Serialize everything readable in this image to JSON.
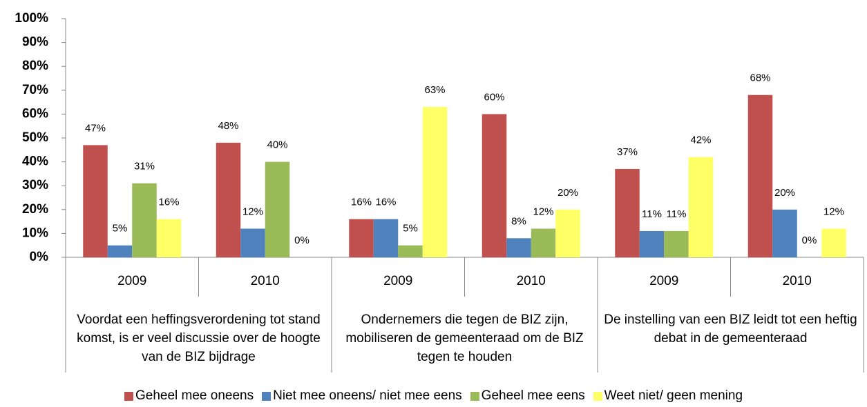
{
  "chart_data": {
    "type": "bar",
    "categories": [
      "2009",
      "2010",
      "2009",
      "2010",
      "2009",
      "2010"
    ],
    "category_groups": [
      "Voordat een heffingsverordening tot stand komst, is er veel discussie over de hoogte van de BIZ bijdrage",
      "Ondernemers die tegen de BIZ zijn, mobiliseren de gemeenteraad om de BIZ tegen te houden",
      "De instelling van een BIZ leidt tot een heftig debat in de gemeenteraad"
    ],
    "series": [
      {
        "name": "Geheel mee oneens",
        "color": "#c0504d",
        "values": [
          47,
          48,
          16,
          60,
          37,
          68
        ],
        "value_labels": [
          "47%",
          "48%",
          "16%",
          "60%",
          "37%",
          "68%"
        ]
      },
      {
        "name": "Niet mee oneens/ niet mee eens",
        "color": "#4f81bd",
        "values": [
          5,
          12,
          16,
          8,
          11,
          20
        ],
        "value_labels": [
          "5%",
          "12%",
          "16%",
          "8%",
          "11%",
          "20%"
        ]
      },
      {
        "name": "Geheel mee eens",
        "color": "#9bbb59",
        "values": [
          31,
          40,
          5,
          12,
          11,
          0
        ],
        "value_labels": [
          "31%",
          "40%",
          "5%",
          "12%",
          "11%",
          "0%"
        ]
      },
      {
        "name": "Weet niet/ geen mening",
        "color": "#ffff66",
        "values": [
          16,
          0,
          63,
          20,
          42,
          12
        ],
        "value_labels": [
          "16%",
          "0%",
          "63%",
          "20%",
          "42%",
          "12%"
        ]
      }
    ],
    "ylim": [
      0,
      100
    ],
    "yticks": [
      {
        "value": 0,
        "label": "0%"
      },
      {
        "value": 10,
        "label": "10%"
      },
      {
        "value": 20,
        "label": "20%"
      },
      {
        "value": 30,
        "label": "30%"
      },
      {
        "value": 40,
        "label": "40%"
      },
      {
        "value": 50,
        "label": "50%"
      },
      {
        "value": 60,
        "label": "60%"
      },
      {
        "value": 70,
        "label": "70%"
      },
      {
        "value": 80,
        "label": "80%"
      },
      {
        "value": 90,
        "label": "90%"
      },
      {
        "value": 100,
        "label": "100%"
      }
    ],
    "legend": "bottom"
  }
}
